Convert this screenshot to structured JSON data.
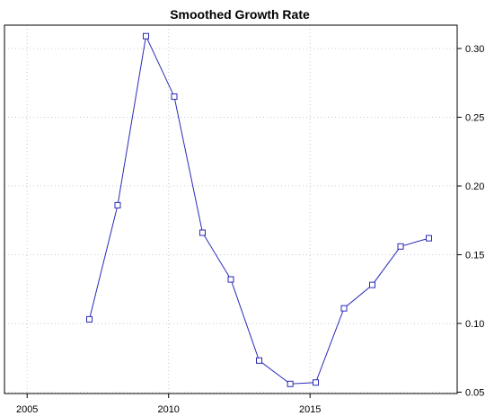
{
  "chart_data": {
    "type": "line",
    "title": "Smoothed Growth Rate",
    "xlabel": "",
    "ylabel": "",
    "xlim": [
      2004.2,
      2020.2
    ],
    "ylim": [
      0.049,
      0.317
    ],
    "x_ticks": [
      2005,
      2010,
      2015
    ],
    "y_ticks": [
      0.05,
      0.1,
      0.15,
      0.2,
      0.25,
      0.3
    ],
    "y_axis_side": "right",
    "grid": true,
    "marker": "square",
    "line_color": "#2a2ab8",
    "series": [
      {
        "x": [
          2007.2,
          2008.2,
          2009.2,
          2010.2,
          2011.2,
          2012.2,
          2013.2,
          2014.3,
          2015.2,
          2016.2,
          2017.2,
          2018.2,
          2019.2
        ],
        "values": [
          0.103,
          0.186,
          0.309,
          0.265,
          0.166,
          0.132,
          0.073,
          0.056,
          0.057,
          0.111,
          0.128,
          0.156,
          0.162
        ]
      }
    ]
  }
}
